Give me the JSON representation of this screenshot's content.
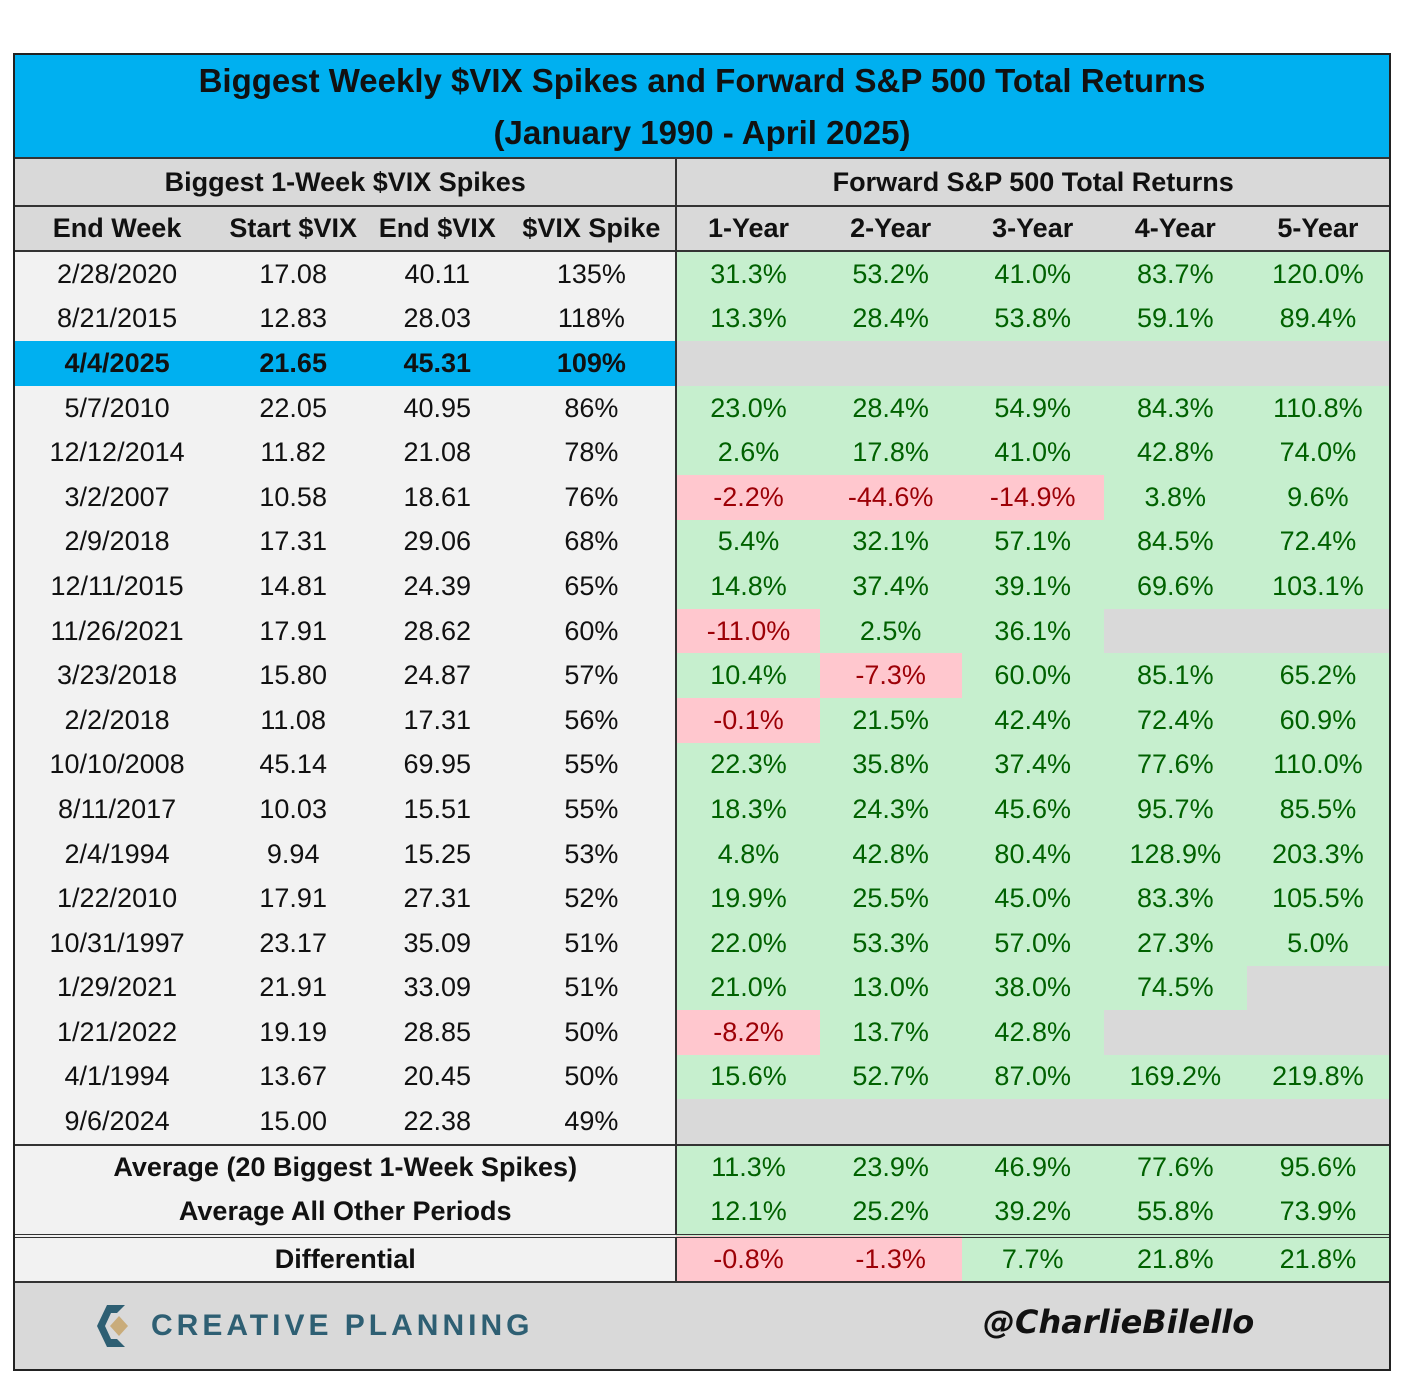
{
  "title": {
    "line1": "Biggest Weekly $VIX Spikes and Forward S&P 500 Total Returns",
    "line2": "(January 1990 - April 2025)"
  },
  "groups": {
    "left": "Biggest 1-Week $VIX Spikes",
    "right": "Forward S&P 500 Total Returns"
  },
  "columns": [
    "End Week",
    "Start $VIX",
    "End $VIX",
    "$VIX Spike",
    "1-Year",
    "2-Year",
    "3-Year",
    "4-Year",
    "5-Year"
  ],
  "rows": [
    {
      "end_week": "2/28/2020",
      "start": "17.08",
      "end": "40.11",
      "spike": "135%",
      "returns": [
        "31.3%",
        "53.2%",
        "41.0%",
        "83.7%",
        "120.0%"
      ]
    },
    {
      "end_week": "8/21/2015",
      "start": "12.83",
      "end": "28.03",
      "spike": "118%",
      "returns": [
        "13.3%",
        "28.4%",
        "53.8%",
        "59.1%",
        "89.4%"
      ]
    },
    {
      "end_week": "4/4/2025",
      "start": "21.65",
      "end": "45.31",
      "spike": "109%",
      "returns": [
        "",
        "",
        "",
        "",
        ""
      ],
      "highlight": true
    },
    {
      "end_week": "5/7/2010",
      "start": "22.05",
      "end": "40.95",
      "spike": "86%",
      "returns": [
        "23.0%",
        "28.4%",
        "54.9%",
        "84.3%",
        "110.8%"
      ]
    },
    {
      "end_week": "12/12/2014",
      "start": "11.82",
      "end": "21.08",
      "spike": "78%",
      "returns": [
        "2.6%",
        "17.8%",
        "41.0%",
        "42.8%",
        "74.0%"
      ]
    },
    {
      "end_week": "3/2/2007",
      "start": "10.58",
      "end": "18.61",
      "spike": "76%",
      "returns": [
        "-2.2%",
        "-44.6%",
        "-14.9%",
        "3.8%",
        "9.6%"
      ]
    },
    {
      "end_week": "2/9/2018",
      "start": "17.31",
      "end": "29.06",
      "spike": "68%",
      "returns": [
        "5.4%",
        "32.1%",
        "57.1%",
        "84.5%",
        "72.4%"
      ]
    },
    {
      "end_week": "12/11/2015",
      "start": "14.81",
      "end": "24.39",
      "spike": "65%",
      "returns": [
        "14.8%",
        "37.4%",
        "39.1%",
        "69.6%",
        "103.1%"
      ]
    },
    {
      "end_week": "11/26/2021",
      "start": "17.91",
      "end": "28.62",
      "spike": "60%",
      "returns": [
        "-11.0%",
        "2.5%",
        "36.1%",
        "",
        ""
      ]
    },
    {
      "end_week": "3/23/2018",
      "start": "15.80",
      "end": "24.87",
      "spike": "57%",
      "returns": [
        "10.4%",
        "-7.3%",
        "60.0%",
        "85.1%",
        "65.2%"
      ]
    },
    {
      "end_week": "2/2/2018",
      "start": "11.08",
      "end": "17.31",
      "spike": "56%",
      "returns": [
        "-0.1%",
        "21.5%",
        "42.4%",
        "72.4%",
        "60.9%"
      ]
    },
    {
      "end_week": "10/10/2008",
      "start": "45.14",
      "end": "69.95",
      "spike": "55%",
      "returns": [
        "22.3%",
        "35.8%",
        "37.4%",
        "77.6%",
        "110.0%"
      ]
    },
    {
      "end_week": "8/11/2017",
      "start": "10.03",
      "end": "15.51",
      "spike": "55%",
      "returns": [
        "18.3%",
        "24.3%",
        "45.6%",
        "95.7%",
        "85.5%"
      ]
    },
    {
      "end_week": "2/4/1994",
      "start": "9.94",
      "end": "15.25",
      "spike": "53%",
      "returns": [
        "4.8%",
        "42.8%",
        "80.4%",
        "128.9%",
        "203.3%"
      ]
    },
    {
      "end_week": "1/22/2010",
      "start": "17.91",
      "end": "27.31",
      "spike": "52%",
      "returns": [
        "19.9%",
        "25.5%",
        "45.0%",
        "83.3%",
        "105.5%"
      ]
    },
    {
      "end_week": "10/31/1997",
      "start": "23.17",
      "end": "35.09",
      "spike": "51%",
      "returns": [
        "22.0%",
        "53.3%",
        "57.0%",
        "27.3%",
        "5.0%"
      ]
    },
    {
      "end_week": "1/29/2021",
      "start": "21.91",
      "end": "33.09",
      "spike": "51%",
      "returns": [
        "21.0%",
        "13.0%",
        "38.0%",
        "74.5%",
        ""
      ]
    },
    {
      "end_week": "1/21/2022",
      "start": "19.19",
      "end": "28.85",
      "spike": "50%",
      "returns": [
        "-8.2%",
        "13.7%",
        "42.8%",
        "",
        ""
      ]
    },
    {
      "end_week": "4/1/1994",
      "start": "13.67",
      "end": "20.45",
      "spike": "50%",
      "returns": [
        "15.6%",
        "52.7%",
        "87.0%",
        "169.2%",
        "219.8%"
      ]
    },
    {
      "end_week": "9/6/2024",
      "start": "15.00",
      "end": "22.38",
      "spike": "49%",
      "returns": [
        "",
        "",
        "",
        "",
        ""
      ]
    }
  ],
  "summary": [
    {
      "label": "Average (20 Biggest 1-Week Spikes)",
      "returns": [
        "11.3%",
        "23.9%",
        "46.9%",
        "77.6%",
        "95.6%"
      ]
    },
    {
      "label": "Average All Other Periods",
      "returns": [
        "12.1%",
        "25.2%",
        "39.2%",
        "55.8%",
        "73.9%"
      ]
    }
  ],
  "differential": {
    "label": "Differential",
    "returns": [
      "-0.8%",
      "-1.3%",
      "7.7%",
      "21.8%",
      "21.8%"
    ]
  },
  "footer": {
    "logo_text": "CREATIVE PLANNING",
    "handle": "@CharlieBilello"
  },
  "colors": {
    "title_bg": "#00b0f0",
    "positive_bg": "#c6efce",
    "positive_text": "#006100",
    "negative_bg": "#ffc7ce",
    "negative_text": "#9c0006",
    "empty_bg": "#d9d9d9"
  }
}
